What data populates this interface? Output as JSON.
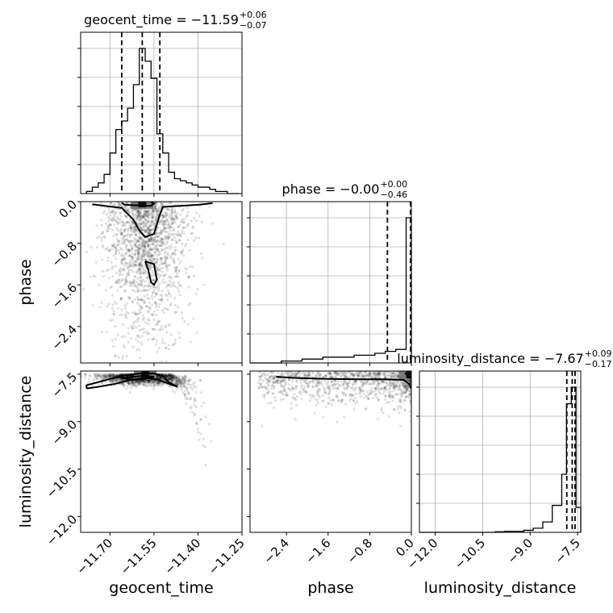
{
  "chart_data": {
    "type": "scatter",
    "title": "",
    "parameters": [
      {
        "name": "geocent_time",
        "axis_label": "geocent_time",
        "range": [
          -11.8,
          -11.25
        ],
        "ticks": [
          -11.7,
          -11.55,
          -11.4,
          -11.25
        ],
        "tick_labels": [
          "−11.70",
          "−11.55",
          "−11.40",
          "−11.25"
        ],
        "title_main": "geocent_time = −11.59",
        "title_plus": "+0.06",
        "title_minus": "−0.07",
        "quantiles": [
          -11.66,
          -11.59,
          -11.53
        ],
        "histogram": {
          "bin_edges": [
            -11.78,
            -11.76,
            -11.74,
            -11.72,
            -11.7,
            -11.68,
            -11.66,
            -11.64,
            -11.62,
            -11.6,
            -11.58,
            -11.56,
            -11.54,
            -11.52,
            -11.5,
            -11.48,
            -11.46,
            -11.44,
            -11.42,
            -11.4,
            -11.38,
            -11.36,
            -11.34,
            -11.32,
            -11.3,
            -11.28,
            -11.26
          ],
          "counts": [
            1,
            3,
            5,
            9,
            19,
            30,
            34,
            40,
            51,
            68,
            62,
            54,
            28,
            19,
            10,
            7,
            6,
            5,
            4,
            3,
            3,
            2,
            1,
            1,
            0,
            0
          ]
        }
      },
      {
        "name": "phase",
        "axis_label": "phase",
        "range": [
          -3.1,
          0.0
        ],
        "ticks": [
          -2.4,
          -1.6,
          -0.8,
          0.0
        ],
        "tick_labels": [
          "−2.4",
          "−1.6",
          "−0.8",
          "0.0"
        ],
        "title_main": "phase = −0.00",
        "title_plus": "+0.00",
        "title_minus": "−0.46",
        "quantiles": [
          -0.46,
          -0.003,
          -0.0005
        ],
        "histogram": {
          "bin_edges": [
            -3.1,
            -2.9,
            -2.7,
            -2.5,
            -2.3,
            -2.1,
            -1.9,
            -1.7,
            -1.5,
            -1.3,
            -1.1,
            -0.9,
            -0.7,
            -0.5,
            -0.3,
            -0.1,
            0.0
          ],
          "counts": [
            0,
            0,
            0,
            1,
            1,
            2,
            2,
            3,
            3,
            3,
            4,
            4,
            5,
            6,
            7,
            75
          ]
        }
      },
      {
        "name": "luminosity_distance",
        "axis_label": "luminosity_distance",
        "range": [
          -12.5,
          -7.4
        ],
        "ticks": [
          -12.0,
          -10.5,
          -9.0,
          -7.5
        ],
        "tick_labels": [
          "−12.0",
          "−10.5",
          "−9.0",
          "−7.5"
        ],
        "title_main": "luminosity_distance = −7.67",
        "title_plus": "+0.09",
        "title_minus": "−0.17",
        "quantiles": [
          -7.84,
          -7.67,
          -7.58
        ],
        "histogram": {
          "bin_edges": [
            -12.5,
            -12.2,
            -11.9,
            -11.6,
            -11.3,
            -11.0,
            -10.7,
            -10.4,
            -10.1,
            -9.8,
            -9.5,
            -9.2,
            -8.9,
            -8.6,
            -8.3,
            -8.0,
            -7.85,
            -7.7,
            -7.55,
            -7.4
          ],
          "counts": [
            0,
            0,
            0,
            0,
            0,
            0,
            0,
            0,
            0.3,
            0.5,
            0.5,
            1,
            2,
            5,
            13,
            28,
            62,
            70,
            12
          ]
        }
      }
    ],
    "contours": [
      {
        "x_param": "geocent_time",
        "y_param": "phase",
        "levels": [
          [
            [
              -11.76,
              -0.05
            ],
            [
              -11.72,
              -0.08
            ],
            [
              -11.66,
              -0.12
            ],
            [
              -11.62,
              -0.35
            ],
            [
              -11.6,
              -0.55
            ],
            [
              -11.58,
              -0.68
            ],
            [
              -11.55,
              -0.62
            ],
            [
              -11.53,
              -0.25
            ],
            [
              -11.52,
              -0.1
            ],
            [
              -11.46,
              -0.08
            ],
            [
              -11.4,
              -0.06
            ],
            [
              -11.35,
              -0.03
            ]
          ],
          [
            [
              -11.58,
              -1.15
            ],
            [
              -11.57,
              -1.3
            ],
            [
              -11.56,
              -1.55
            ],
            [
              -11.55,
              -1.6
            ],
            [
              -11.54,
              -1.5
            ],
            [
              -11.55,
              -1.2
            ],
            [
              -11.58,
              -1.15
            ]
          ],
          [
            [
              -11.66,
              -0.02
            ],
            [
              -11.65,
              -0.06
            ],
            [
              -11.61,
              -0.07
            ],
            [
              -11.56,
              -0.08
            ],
            [
              -11.55,
              -0.04
            ],
            [
              -11.56,
              -0.01
            ]
          ]
        ],
        "peak": [
          -11.59,
          -0.03
        ],
        "samples": {
          "count": 1700,
          "x_center": -11.58,
          "x_spread": 0.07,
          "y_scale": 0.9
        }
      },
      {
        "x_param": "geocent_time",
        "y_param": "luminosity_distance",
        "levels": [
          [
            [
              -11.78,
              -7.95
            ],
            [
              -11.74,
              -7.9
            ],
            [
              -11.68,
              -7.8
            ],
            [
              -11.63,
              -7.68
            ],
            [
              -11.58,
              -7.62
            ],
            [
              -11.54,
              -7.66
            ],
            [
              -11.5,
              -7.8
            ],
            [
              -11.47,
              -7.9
            ],
            [
              -11.5,
              -7.75
            ],
            [
              -11.52,
              -7.55
            ],
            [
              -11.55,
              -7.48
            ],
            [
              -11.6,
              -7.48
            ],
            [
              -11.66,
              -7.55
            ],
            [
              -11.72,
              -7.7
            ],
            [
              -11.78,
              -7.85
            ],
            [
              -11.78,
              -7.95
            ]
          ],
          [
            [
              -11.66,
              -7.62
            ],
            [
              -11.62,
              -7.58
            ],
            [
              -11.58,
              -7.55
            ],
            [
              -11.55,
              -7.58
            ],
            [
              -11.58,
              -7.65
            ],
            [
              -11.62,
              -7.68
            ],
            [
              -11.66,
              -7.62
            ]
          ]
        ],
        "peak": [
          -11.58,
          -7.5
        ],
        "samples": {
          "count": 1500,
          "x_center": -11.58,
          "x_spread": 0.08,
          "y_scale": 0.35
        }
      },
      {
        "x_param": "phase",
        "y_param": "luminosity_distance",
        "levels": [
          [
            [
              -2.6,
              -7.58
            ],
            [
              -2.2,
              -7.62
            ],
            [
              -1.6,
              -7.65
            ],
            [
              -1.0,
              -7.66
            ],
            [
              -0.5,
              -7.66
            ],
            [
              -0.15,
              -7.68
            ],
            [
              -0.05,
              -7.8
            ],
            [
              0.0,
              -7.95
            ]
          ],
          [
            [
              -0.12,
              -7.45
            ],
            [
              -0.08,
              -7.55
            ],
            [
              -0.03,
              -7.62
            ],
            [
              -0.01,
              -7.58
            ]
          ]
        ],
        "peak": [
          -0.02,
          -7.5
        ],
        "samples": {
          "count": 1100,
          "x_center": -1.2,
          "x_spread": 0.8,
          "y_scale": 0.35
        }
      }
    ]
  }
}
